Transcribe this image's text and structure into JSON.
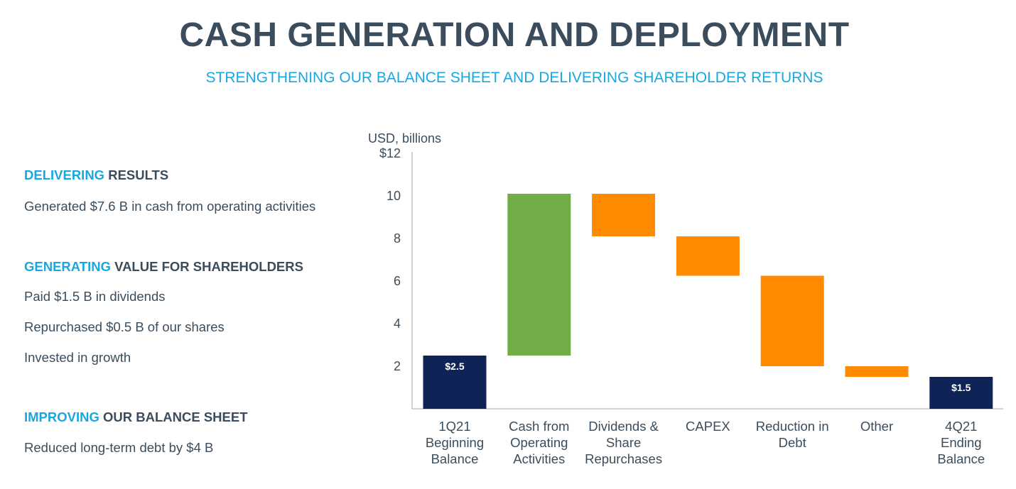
{
  "header": {
    "title": "CASH GENERATION AND DEPLOYMENT",
    "subtitle": "STRENGTHENING OUR BALANCE SHEET AND DELIVERING SHAREHOLDER RETURNS"
  },
  "sections": [
    {
      "highlight": "DELIVERING",
      "rest": " RESULTS",
      "items": [
        "Generated $7.6 B in cash from operating activities"
      ]
    },
    {
      "highlight": "GENERATING",
      "rest": " VALUE FOR SHAREHOLDERS",
      "items": [
        "Paid $1.5 B in dividends",
        "Repurchased $0.5 B of our shares",
        "Invested in growth"
      ]
    },
    {
      "highlight": "IMPROVING",
      "rest": " OUR BALANCE SHEET",
      "items": [
        "Reduced long-term debt by $4 B"
      ]
    }
  ],
  "colors": {
    "highlight": "#1aa7e0",
    "text": "#3b4d5c",
    "total": "#0f2357",
    "increase": "#70ad47",
    "decrease": "#ff8a00"
  },
  "chart_data": {
    "type": "bar",
    "subtype": "waterfall",
    "ylabel": "USD, billions",
    "ylim": [
      0,
      12
    ],
    "yticks": [
      {
        "value": 2,
        "label": "2"
      },
      {
        "value": 4,
        "label": "4"
      },
      {
        "value": 6,
        "label": "6"
      },
      {
        "value": 8,
        "label": "8"
      },
      {
        "value": 10,
        "label": "10"
      },
      {
        "value": 12,
        "label": "$12"
      }
    ],
    "bars": [
      {
        "category": [
          "1Q21",
          "Beginning",
          "Balance"
        ],
        "kind": "total",
        "start": 0,
        "end": 2.5,
        "label": "$2.5"
      },
      {
        "category": [
          "Cash from",
          "Operating",
          "Activities"
        ],
        "kind": "increase",
        "start": 2.5,
        "end": 10.1,
        "label": ""
      },
      {
        "category": [
          "Dividends &",
          "Share",
          "Repurchases"
        ],
        "kind": "decrease",
        "start": 10.1,
        "end": 8.1,
        "label": ""
      },
      {
        "category": [
          "CAPEX"
        ],
        "kind": "decrease",
        "start": 8.1,
        "end": 6.25,
        "label": ""
      },
      {
        "category": [
          "Reduction in",
          "Debt"
        ],
        "kind": "decrease",
        "start": 6.25,
        "end": 2.0,
        "label": ""
      },
      {
        "category": [
          "Other"
        ],
        "kind": "decrease",
        "start": 2.0,
        "end": 1.5,
        "label": ""
      },
      {
        "category": [
          "4Q21",
          "Ending",
          "Balance"
        ],
        "kind": "total",
        "start": 0,
        "end": 1.5,
        "label": "$1.5"
      }
    ],
    "grid": false,
    "legend": "none"
  }
}
